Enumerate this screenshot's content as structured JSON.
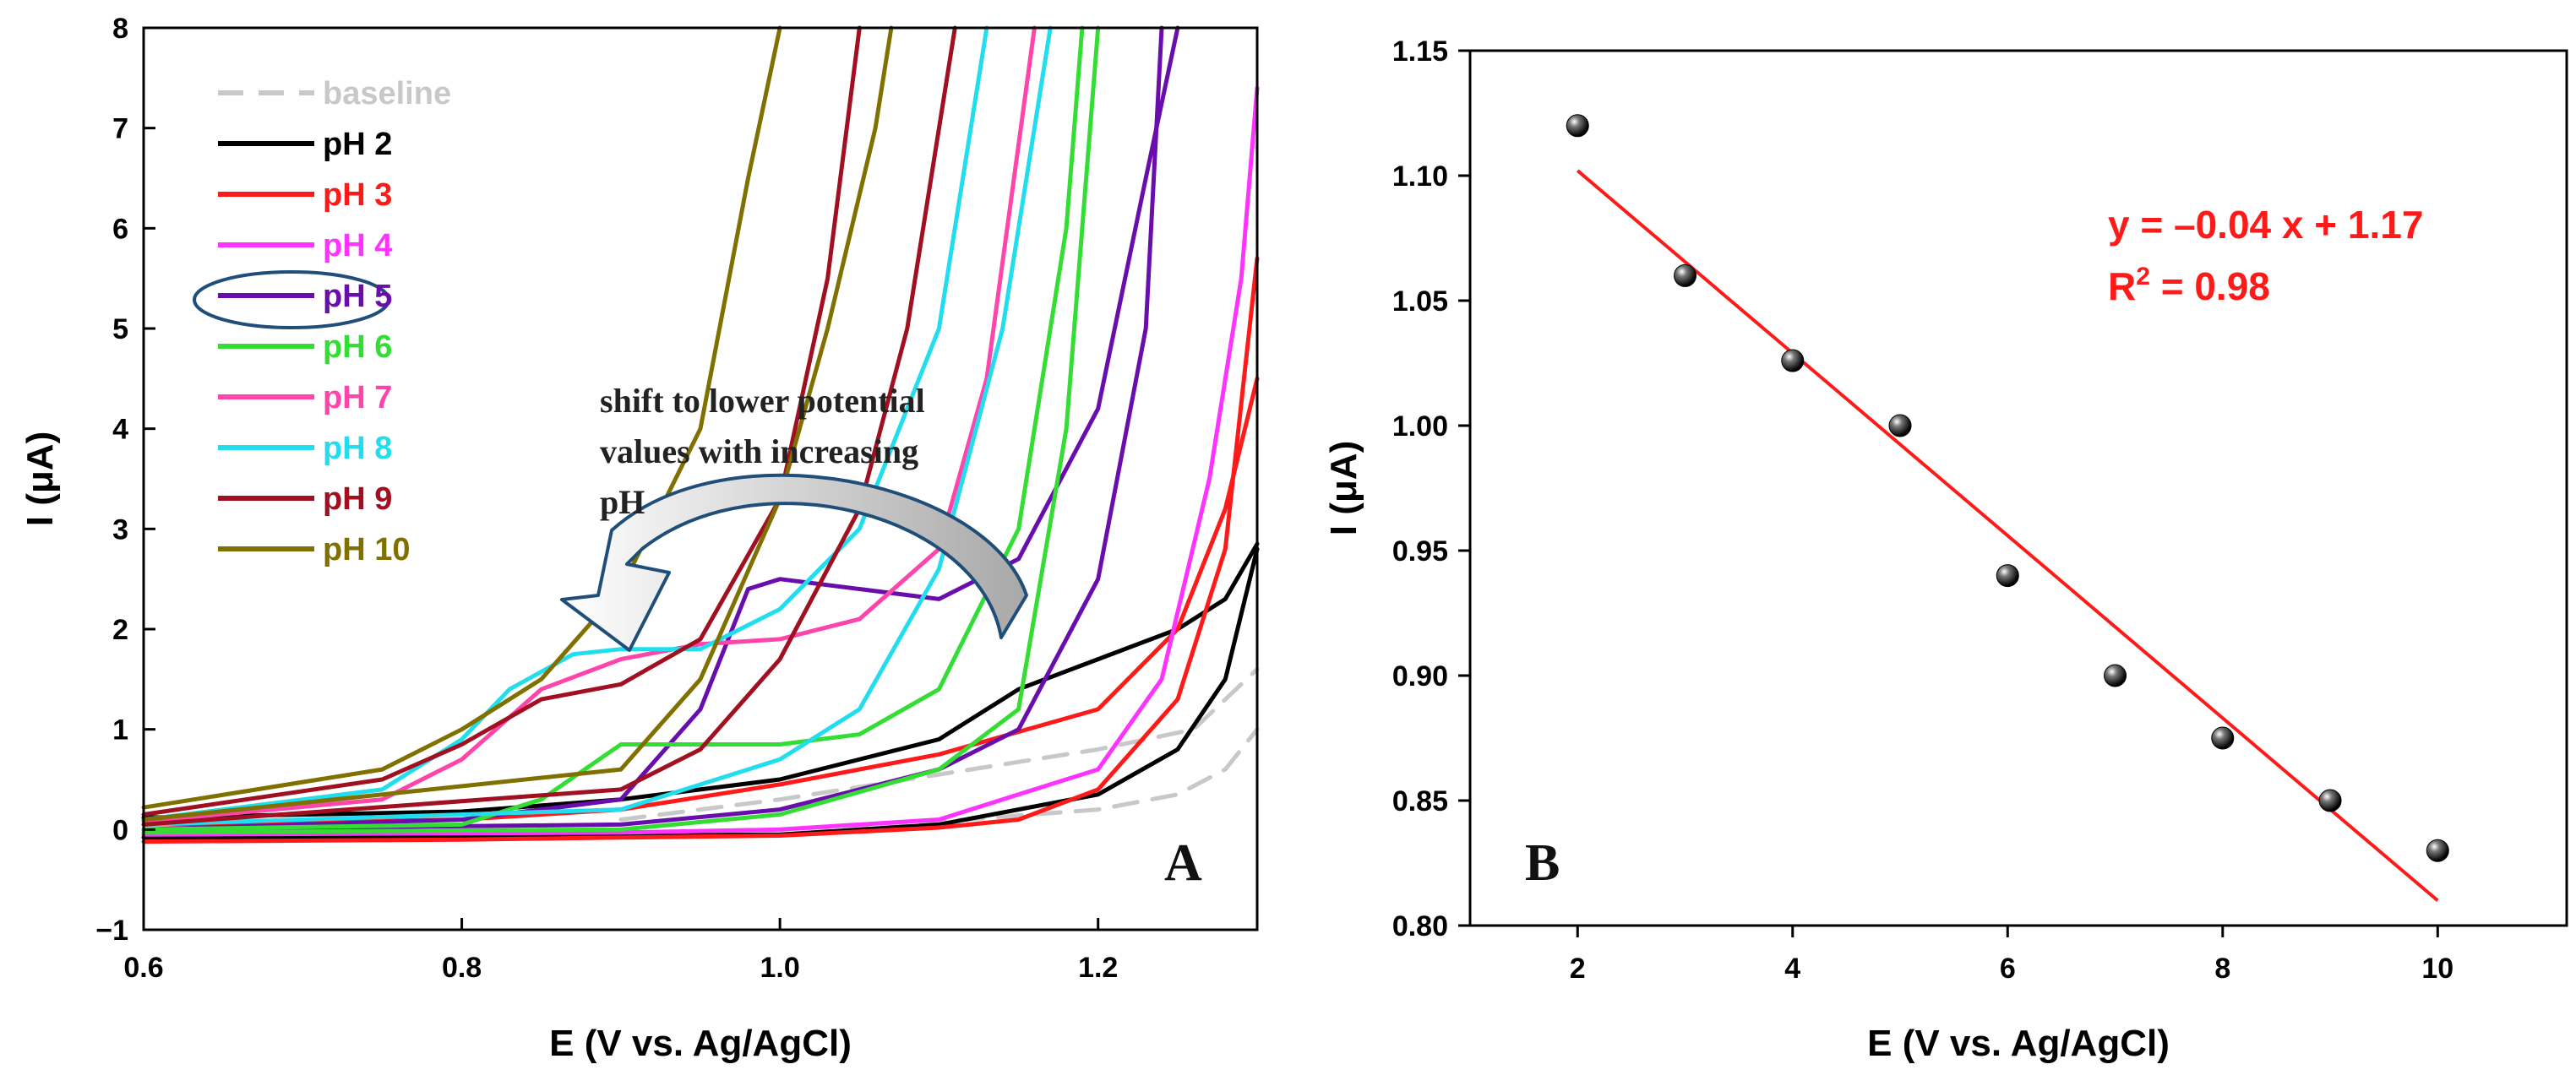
{
  "chart_data": [
    {
      "type": "line",
      "panel_label": "A",
      "xlabel": "E (V vs. Ag/AgCl)",
      "ylabel": "I (μA)",
      "xlim": [
        0.6,
        1.3
      ],
      "ylim": [
        -1,
        8
      ],
      "xticks": [
        "0.6",
        "0.8",
        "1.0",
        "1.2"
      ],
      "xtick_values": [
        0.6,
        0.8,
        1.0,
        1.2
      ],
      "yticks": [
        "−1",
        "0",
        "1",
        "2",
        "3",
        "4",
        "5",
        "6",
        "7",
        "8"
      ],
      "ytick_values": [
        -1,
        0,
        1,
        2,
        3,
        4,
        5,
        6,
        7,
        8
      ],
      "legend_position": "top-left",
      "highlighted_series": "pH 5",
      "annotation": [
        "shift to lower potential",
        "values with increasing",
        "pH"
      ],
      "series": [
        {
          "name": "baseline",
          "color": "#c8c8c8",
          "dashed": true,
          "points": [
            [
              0.6,
              -0.06
            ],
            [
              0.8,
              -0.06
            ],
            [
              0.9,
              -0.05
            ],
            [
              1.0,
              0.0
            ],
            [
              1.1,
              0.08
            ],
            [
              1.2,
              0.2
            ],
            [
              1.25,
              0.35
            ],
            [
              1.28,
              0.6
            ],
            [
              1.3,
              1.0
            ]
          ]
        },
        {
          "name": "baseline",
          "color": "#c8c8c8",
          "dashed": true,
          "points": [
            [
              0.9,
              0.1
            ],
            [
              1.0,
              0.3
            ],
            [
              1.1,
              0.55
            ],
            [
              1.2,
              0.8
            ],
            [
              1.26,
              1.0
            ],
            [
              1.3,
              1.6
            ]
          ]
        },
        {
          "name": "pH 2",
          "color": "#000000",
          "dashed": false,
          "points": [
            [
              0.6,
              -0.08
            ],
            [
              0.8,
              -0.07
            ],
            [
              0.9,
              -0.06
            ],
            [
              1.0,
              -0.05
            ],
            [
              1.1,
              0.05
            ],
            [
              1.2,
              0.35
            ],
            [
              1.25,
              0.8
            ],
            [
              1.28,
              1.5
            ],
            [
              1.3,
              2.8
            ]
          ]
        },
        {
          "name": "pH 2",
          "color": "#000000",
          "dashed": false,
          "points": [
            [
              0.6,
              0.12
            ],
            [
              0.8,
              0.18
            ],
            [
              0.9,
              0.3
            ],
            [
              1.0,
              0.5
            ],
            [
              1.1,
              0.9
            ],
            [
              1.15,
              1.4
            ],
            [
              1.2,
              1.7
            ],
            [
              1.25,
              2.0
            ],
            [
              1.28,
              2.3
            ],
            [
              1.3,
              2.85
            ]
          ]
        },
        {
          "name": "pH 3",
          "color": "#ff1a1a",
          "dashed": false,
          "points": [
            [
              0.6,
              -0.12
            ],
            [
              0.8,
              -0.1
            ],
            [
              0.9,
              -0.08
            ],
            [
              1.0,
              -0.06
            ],
            [
              1.1,
              0.02
            ],
            [
              1.15,
              0.1
            ],
            [
              1.2,
              0.4
            ],
            [
              1.25,
              1.3
            ],
            [
              1.28,
              2.8
            ],
            [
              1.3,
              5.7
            ]
          ]
        },
        {
          "name": "pH 3",
          "color": "#ff1a1a",
          "dashed": false,
          "points": [
            [
              0.6,
              0.05
            ],
            [
              0.8,
              0.1
            ],
            [
              0.9,
              0.2
            ],
            [
              1.0,
              0.45
            ],
            [
              1.1,
              0.75
            ],
            [
              1.2,
              1.2
            ],
            [
              1.25,
              2.0
            ],
            [
              1.28,
              3.2
            ],
            [
              1.3,
              4.5
            ]
          ]
        },
        {
          "name": "pH 4",
          "color": "#ff33ff",
          "dashed": false,
          "points": [
            [
              0.6,
              -0.05
            ],
            [
              0.9,
              -0.03
            ],
            [
              1.0,
              0.0
            ],
            [
              1.1,
              0.1
            ],
            [
              1.2,
              0.6
            ],
            [
              1.24,
              1.5
            ],
            [
              1.27,
              3.5
            ],
            [
              1.29,
              5.5
            ],
            [
              1.3,
              7.4
            ]
          ]
        },
        {
          "name": "pH 5",
          "color": "#6a0dad",
          "dashed": false,
          "points": [
            [
              0.6,
              0.0
            ],
            [
              0.8,
              0.1
            ],
            [
              0.9,
              0.3
            ],
            [
              0.95,
              1.2
            ],
            [
              0.98,
              2.4
            ],
            [
              1.0,
              2.5
            ],
            [
              1.05,
              2.4
            ],
            [
              1.1,
              2.3
            ],
            [
              1.15,
              2.7
            ],
            [
              1.2,
              4.2
            ],
            [
              1.23,
              6.5
            ],
            [
              1.25,
              8.0
            ]
          ]
        },
        {
          "name": "pH 5",
          "color": "#6a0dad",
          "dashed": false,
          "points": [
            [
              0.6,
              0.0
            ],
            [
              0.9,
              0.05
            ],
            [
              1.0,
              0.2
            ],
            [
              1.1,
              0.6
            ],
            [
              1.15,
              1.0
            ],
            [
              1.2,
              2.5
            ],
            [
              1.23,
              5.0
            ],
            [
              1.24,
              8.0
            ]
          ]
        },
        {
          "name": "pH 6",
          "color": "#33dd33",
          "dashed": false,
          "points": [
            [
              0.6,
              0.0
            ],
            [
              0.8,
              0.05
            ],
            [
              0.85,
              0.3
            ],
            [
              0.9,
              0.85
            ],
            [
              0.95,
              0.85
            ],
            [
              1.0,
              0.85
            ],
            [
              1.05,
              0.95
            ],
            [
              1.1,
              1.4
            ],
            [
              1.15,
              3.0
            ],
            [
              1.18,
              6.0
            ],
            [
              1.19,
              8.0
            ]
          ]
        },
        {
          "name": "pH 6",
          "color": "#33dd33",
          "dashed": false,
          "points": [
            [
              0.6,
              -0.03
            ],
            [
              0.9,
              0.0
            ],
            [
              1.0,
              0.15
            ],
            [
              1.1,
              0.6
            ],
            [
              1.15,
              1.2
            ],
            [
              1.18,
              4.0
            ],
            [
              1.2,
              8.0
            ]
          ]
        },
        {
          "name": "pH 7",
          "color": "#ff44aa",
          "dashed": false,
          "points": [
            [
              0.6,
              0.08
            ],
            [
              0.75,
              0.3
            ],
            [
              0.8,
              0.7
            ],
            [
              0.85,
              1.4
            ],
            [
              0.9,
              1.7
            ],
            [
              0.95,
              1.85
            ],
            [
              1.0,
              1.9
            ],
            [
              1.05,
              2.1
            ],
            [
              1.1,
              2.8
            ],
            [
              1.13,
              4.5
            ],
            [
              1.16,
              8.0
            ]
          ]
        },
        {
          "name": "pH 8",
          "color": "#22ddee",
          "dashed": false,
          "points": [
            [
              0.6,
              0.1
            ],
            [
              0.75,
              0.4
            ],
            [
              0.8,
              0.9
            ],
            [
              0.83,
              1.4
            ],
            [
              0.87,
              1.75
            ],
            [
              0.9,
              1.8
            ],
            [
              0.95,
              1.8
            ],
            [
              1.0,
              2.2
            ],
            [
              1.05,
              3.0
            ],
            [
              1.1,
              5.0
            ],
            [
              1.13,
              8.0
            ]
          ]
        },
        {
          "name": "pH 8",
          "color": "#22ddee",
          "dashed": false,
          "points": [
            [
              0.6,
              0.05
            ],
            [
              0.9,
              0.2
            ],
            [
              1.0,
              0.7
            ],
            [
              1.05,
              1.2
            ],
            [
              1.1,
              2.6
            ],
            [
              1.14,
              5.0
            ],
            [
              1.17,
              8.0
            ]
          ]
        },
        {
          "name": "pH 9",
          "color": "#a01020",
          "dashed": false,
          "points": [
            [
              0.6,
              0.15
            ],
            [
              0.75,
              0.5
            ],
            [
              0.8,
              0.85
            ],
            [
              0.85,
              1.3
            ],
            [
              0.9,
              1.45
            ],
            [
              0.95,
              1.9
            ],
            [
              1.0,
              3.3
            ],
            [
              1.03,
              5.5
            ],
            [
              1.05,
              8.0
            ]
          ]
        },
        {
          "name": "pH 9",
          "color": "#a01020",
          "dashed": false,
          "points": [
            [
              0.6,
              0.05
            ],
            [
              0.9,
              0.4
            ],
            [
              0.95,
              0.8
            ],
            [
              1.0,
              1.7
            ],
            [
              1.05,
              3.2
            ],
            [
              1.08,
              5.0
            ],
            [
              1.11,
              8.0
            ]
          ]
        },
        {
          "name": "pH 10",
          "color": "#807000",
          "dashed": false,
          "points": [
            [
              0.6,
              0.22
            ],
            [
              0.75,
              0.6
            ],
            [
              0.8,
              1.0
            ],
            [
              0.85,
              1.5
            ],
            [
              0.9,
              2.4
            ],
            [
              0.95,
              4.0
            ],
            [
              0.98,
              6.5
            ],
            [
              1.0,
              8.0
            ]
          ]
        },
        {
          "name": "pH 10",
          "color": "#807000",
          "dashed": false,
          "points": [
            [
              0.6,
              0.1
            ],
            [
              0.9,
              0.6
            ],
            [
              0.95,
              1.5
            ],
            [
              1.0,
              3.3
            ],
            [
              1.03,
              5.0
            ],
            [
              1.06,
              7.0
            ],
            [
              1.07,
              8.0
            ]
          ]
        }
      ],
      "legend": [
        {
          "name": "baseline",
          "color": "#c8c8c8",
          "dashed": true
        },
        {
          "name": "pH 2",
          "color": "#000000",
          "dashed": false
        },
        {
          "name": "pH 3",
          "color": "#ff1a1a",
          "dashed": false
        },
        {
          "name": "pH 4",
          "color": "#ff33ff",
          "dashed": false
        },
        {
          "name": "pH 5",
          "color": "#6a0dad",
          "dashed": false
        },
        {
          "name": "pH 6",
          "color": "#33dd33",
          "dashed": false
        },
        {
          "name": "pH 7",
          "color": "#ff44aa",
          "dashed": false
        },
        {
          "name": "pH 8",
          "color": "#22ddee",
          "dashed": false
        },
        {
          "name": "pH 9",
          "color": "#a01020",
          "dashed": false
        },
        {
          "name": "pH 10",
          "color": "#807000",
          "dashed": false
        }
      ]
    },
    {
      "type": "scatter",
      "panel_label": "B",
      "xlabel": "E (V vs. Ag/AgCl)",
      "ylabel": "I (μA)",
      "xlim": [
        1,
        11.2
      ],
      "ylim": [
        0.8,
        1.15
      ],
      "xticks": [
        "2",
        "4",
        "6",
        "8",
        "10"
      ],
      "xtick_values": [
        2,
        4,
        6,
        8,
        10
      ],
      "yticks": [
        "0.80",
        "0.85",
        "0.90",
        "0.95",
        "1.00",
        "1.05",
        "1.10",
        "1.15"
      ],
      "ytick_values": [
        0.8,
        0.85,
        0.9,
        0.95,
        1.0,
        1.05,
        1.1,
        1.15
      ],
      "x": [
        2,
        3,
        4,
        5,
        6,
        7,
        8,
        9,
        10
      ],
      "y": [
        1.12,
        1.06,
        1.026,
        1.0,
        0.94,
        0.9,
        0.875,
        0.85,
        0.83
      ],
      "fit": {
        "slope": -0.0365,
        "intercept": 1.175,
        "x_range": [
          2,
          10
        ],
        "color": "#ff1a1a"
      },
      "equation": "y = –0.04 x + 1.17",
      "r2_prefix": "R",
      "r2_superscript": "2",
      "r2_suffix": " = 0.98"
    }
  ]
}
